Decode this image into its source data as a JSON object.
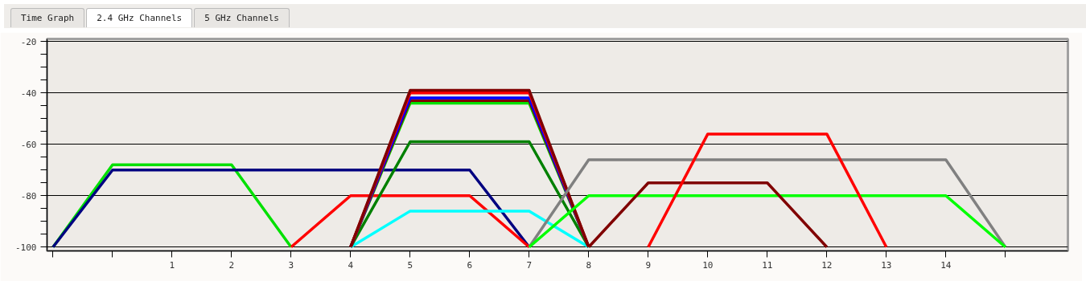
{
  "chart_data": {
    "type": "line",
    "annotations": [
      "Time Graph",
      "2.4 GHz Channels",
      "5 GHz Channels"
    ],
    "xlim": [
      -1.1,
      16.05
    ],
    "ylim": [
      -101.5,
      -19
    ],
    "xticks": [
      {
        "value": -1,
        "label": null
      },
      {
        "value": 0,
        "label": null
      },
      1,
      2,
      3,
      4,
      5,
      6,
      7,
      8,
      9,
      10,
      11,
      12,
      13,
      14,
      {
        "value": 15,
        "label": null
      }
    ],
    "yticks": [
      -20,
      {
        "value": -25,
        "label": null
      },
      {
        "value": -30,
        "label": null
      },
      {
        "value": -35,
        "label": null
      },
      -40,
      {
        "value": -45,
        "label": null
      },
      {
        "value": -50,
        "label": null
      },
      {
        "value": -55,
        "label": null
      },
      -60,
      {
        "value": -65,
        "label": null
      },
      {
        "value": -70,
        "label": null
      },
      {
        "value": -75,
        "label": null
      },
      -80,
      {
        "value": -85,
        "label": null
      },
      {
        "value": -90,
        "label": null
      },
      {
        "value": -95,
        "label": null
      },
      -100
    ],
    "grid": "y",
    "marker": "none",
    "line_style": "solid",
    "series": [
      {
        "color": "#00e000",
        "x": [
          -1,
          0,
          2,
          3
        ],
        "values": [
          -100,
          -68,
          -68,
          -100
        ]
      },
      {
        "color": "#000080",
        "x": [
          -1,
          0,
          6,
          7
        ],
        "values": [
          -100,
          -70,
          -70,
          -100
        ]
      },
      {
        "color": "#ff0000",
        "x": [
          3,
          4,
          6,
          7
        ],
        "values": [
          -100,
          -80,
          -80,
          -100
        ]
      },
      {
        "color": "#00ffff",
        "x": [
          4,
          5,
          7,
          8
        ],
        "values": [
          -100,
          -86,
          -86,
          -100
        ]
      },
      {
        "color": "#008000",
        "x": [
          4,
          5,
          7,
          8
        ],
        "values": [
          -100,
          -59,
          -59,
          -100
        ]
      },
      {
        "color": "#00e000",
        "x": [
          4,
          5,
          7,
          8
        ],
        "values": [
          -100,
          -44,
          -44,
          -100
        ]
      },
      {
        "color": "#800000",
        "x": [
          4,
          5,
          7,
          8
        ],
        "values": [
          -100,
          -43,
          -43,
          -100
        ]
      },
      {
        "color": "#0000ff",
        "x": [
          4,
          5,
          7,
          8
        ],
        "values": [
          -100,
          -42,
          -42,
          -100
        ]
      },
      {
        "color": "#ff0000",
        "x": [
          4,
          5,
          7,
          8
        ],
        "values": [
          -100,
          -40,
          -40,
          -100
        ]
      },
      {
        "color": "#800000",
        "x": [
          4,
          5,
          7,
          8
        ],
        "values": [
          -100,
          -39,
          -39,
          -100
        ]
      },
      {
        "color": "#808080",
        "x": [
          7,
          8,
          14,
          15
        ],
        "values": [
          -100,
          -66,
          -66,
          -100
        ]
      },
      {
        "color": "#00ff00",
        "x": [
          7,
          8,
          14,
          15
        ],
        "values": [
          -100,
          -80,
          -80,
          -100
        ]
      },
      {
        "color": "#800000",
        "x": [
          8,
          9,
          11,
          12
        ],
        "values": [
          -100,
          -75,
          -75,
          -100
        ]
      },
      {
        "color": "#ff0000",
        "x": [
          9,
          10,
          12,
          13
        ],
        "values": [
          -100,
          -56,
          -56,
          -100
        ]
      }
    ]
  }
}
